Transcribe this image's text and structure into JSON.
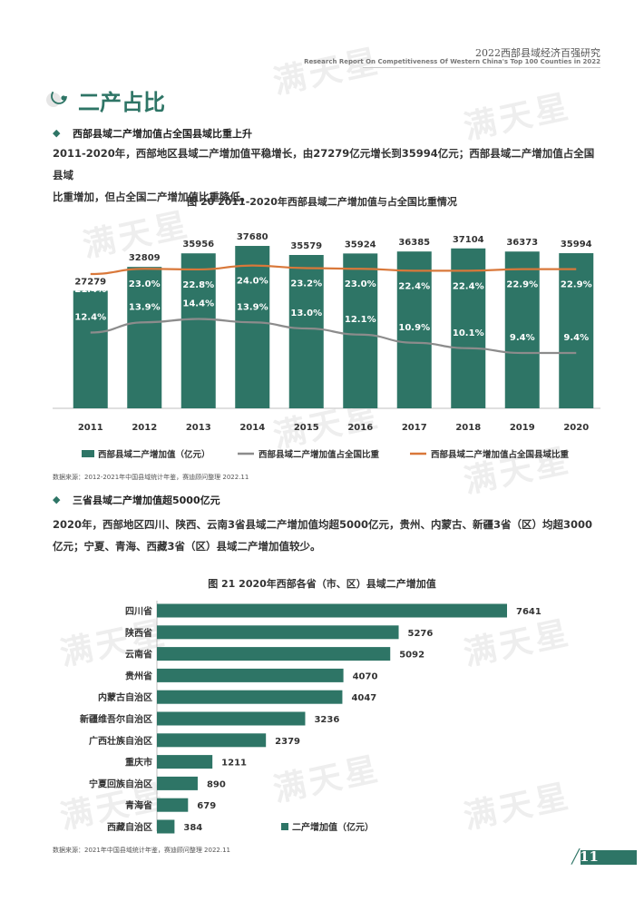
{
  "header": {
    "title": "2022西部县域经济百强研究",
    "subtitle": "Research Report On Competitiveness Of Western China's Top 100 Counties in 2022"
  },
  "watermark": {
    "text": "满天星"
  },
  "section": {
    "title": "二产占比"
  },
  "block1": {
    "bullet": "◆",
    "heading": "西部县域二产增加值占全国县域比重上升",
    "paragraph_line1": "2011-2020年，西部地区县域二产增加值平稳增长，由27279亿元增长到35994亿元；西部县域二产增加值占全国县域",
    "paragraph_line2": "比重增加，但占全国二产增加值比重降低。",
    "figure_title": "图 20  2011-2020年西部县域二产增加值与占全国比重情况",
    "source": "数据来源：2012-2021年中国县域统计年鉴，赛迪顾问整理  2022.11"
  },
  "block2": {
    "bullet": "◆",
    "heading": "三省县域二产增加值超5000亿元",
    "paragraph_line1": "2020年，西部地区四川、陕西、云南3省县域二产增加值均超5000亿元，贵州、内蒙古、新疆3省（区）均超3000",
    "paragraph_line2": "亿元；宁夏、青海、西藏3省（区）县域二产增加值较少。",
    "figure_title": "图 21  2020年西部各省（市、区）县域二产增加值",
    "source": "数据来源：2021年中国县域统计年鉴，赛迪顾问整理  2022.11"
  },
  "page_number": "11",
  "colors": {
    "accent": "#2e7566",
    "orange": "#d9783a",
    "gray": "#8c8c8c"
  },
  "chart_data": [
    {
      "type": "bar+line",
      "title": "图 20  2011-2020年西部县域二产增加值与占全国比重情况",
      "categories": [
        "2011",
        "2012",
        "2013",
        "2014",
        "2015",
        "2016",
        "2017",
        "2018",
        "2019",
        "2020"
      ],
      "series": [
        {
          "name": "西部县域二产增加值（亿元）",
          "type": "bar",
          "values": [
            27279,
            32809,
            35956,
            37680,
            35579,
            35924,
            36385,
            37104,
            36373,
            35994
          ]
        },
        {
          "name": "西部县域二产增加值占全国比重",
          "type": "line",
          "values": [
            12.4,
            13.9,
            14.4,
            13.9,
            13.0,
            12.1,
            10.9,
            10.1,
            9.4,
            9.4
          ],
          "labels": [
            "12.4%",
            "13.9%",
            "14.4%",
            "13.9%",
            "13.0%",
            "12.1%",
            "10.9%",
            "10.1%",
            "9.4%",
            "9.4%"
          ]
        },
        {
          "name": "西部县域二产增加值占全国县域比重",
          "type": "line",
          "values": [
            21.4,
            23.0,
            22.8,
            24.0,
            23.2,
            23.0,
            22.4,
            22.4,
            22.9,
            22.9
          ],
          "labels": [
            "21.4%",
            "23.0%",
            "22.8%",
            "24.0%",
            "23.2%",
            "23.0%",
            "22.4%",
            "22.4%",
            "22.9%",
            "22.9%"
          ]
        }
      ]
    },
    {
      "type": "bar",
      "orientation": "horizontal",
      "title": "图 21  2020年西部各省（市、区）县域二产增加值",
      "categories": [
        "四川省",
        "陕西省",
        "云南省",
        "贵州省",
        "内蒙古自治区",
        "新疆维吾尔自治区",
        "广西壮族自治区",
        "重庆市",
        "宁夏回族自治区",
        "青海省",
        "西藏自治区"
      ],
      "series": [
        {
          "name": "二产增加值（亿元）",
          "values": [
            7641,
            5276,
            5092,
            4070,
            4047,
            3236,
            2379,
            1211,
            890,
            679,
            384
          ]
        }
      ]
    }
  ]
}
